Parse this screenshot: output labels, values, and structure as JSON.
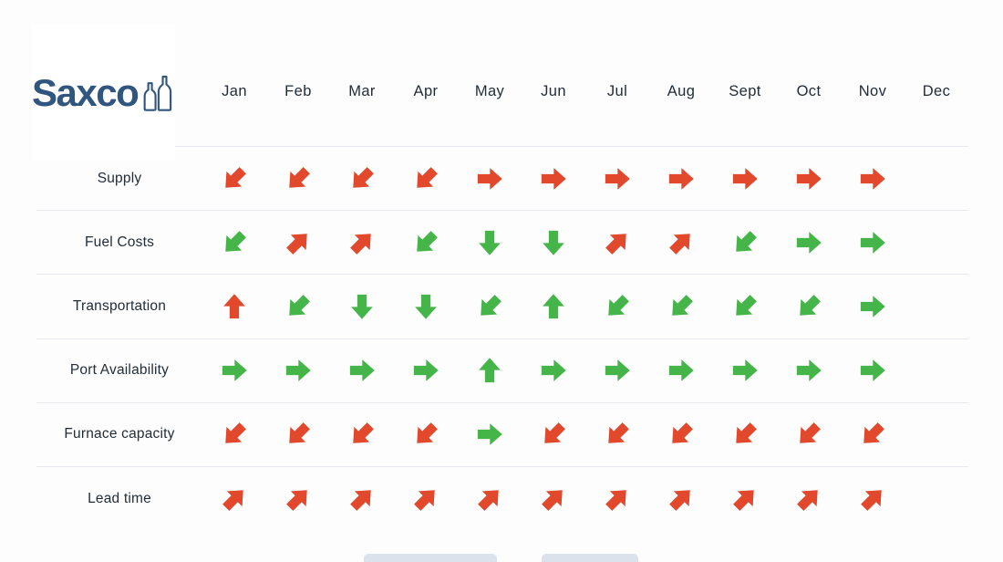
{
  "logo": {
    "text": "Saxco"
  },
  "colors": {
    "red": "#e2492c",
    "green": "#45b549",
    "logo_blue": "#30557e",
    "text": "#222d38",
    "divider": "#e8e8f0",
    "background": "#fdfdfe",
    "fragment": "#dce2eb"
  },
  "chart_data": {
    "type": "table",
    "description": "Monthly supply-chain factor trend matrix; each cell is a colored arrow (status color : arrow direction); null = empty cell",
    "columns": [
      "Jan",
      "Feb",
      "Mar",
      "Apr",
      "May",
      "Jun",
      "Jul",
      "Aug",
      "Sept",
      "Oct",
      "Nov",
      "Dec"
    ],
    "rows": [
      {
        "label": "Supply",
        "cells": [
          "red:down-left",
          "red:down-left",
          "red:down-left",
          "red:down-left",
          "red:right",
          "red:right",
          "red:right",
          "red:right",
          "red:right",
          "red:right",
          "red:right",
          null
        ]
      },
      {
        "label": "Fuel Costs",
        "cells": [
          "green:down-left",
          "red:up-right",
          "red:up-right",
          "green:down-left",
          "green:down",
          "green:down",
          "red:up-right",
          "red:up-right",
          "green:down-left",
          "green:right",
          "green:right",
          null
        ]
      },
      {
        "label": "Transportation",
        "cells": [
          "red:up",
          "green:down-left",
          "green:down",
          "green:down",
          "green:down-left",
          "green:up",
          "green:down-left",
          "green:down-left",
          "green:down-left",
          "green:down-left",
          "green:right",
          null
        ]
      },
      {
        "label": "Port Availability",
        "cells": [
          "green:right",
          "green:right",
          "green:right",
          "green:right",
          "green:up",
          "green:right",
          "green:right",
          "green:right",
          "green:right",
          "green:right",
          "green:right",
          null
        ]
      },
      {
        "label": "Furnace capacity",
        "cells": [
          "red:down-left",
          "red:down-left",
          "red:down-left",
          "red:down-left",
          "green:right",
          "red:down-left",
          "red:down-left",
          "red:down-left",
          "red:down-left",
          "red:down-left",
          "red:down-left",
          null
        ]
      },
      {
        "label": "Lead time",
        "cells": [
          "red:up-right",
          "red:up-right",
          "red:up-right",
          "red:up-right",
          "red:up-right",
          "red:up-right",
          "red:up-right",
          "red:up-right",
          "red:up-right",
          "red:up-right",
          "red:up-right",
          null
        ]
      }
    ]
  }
}
